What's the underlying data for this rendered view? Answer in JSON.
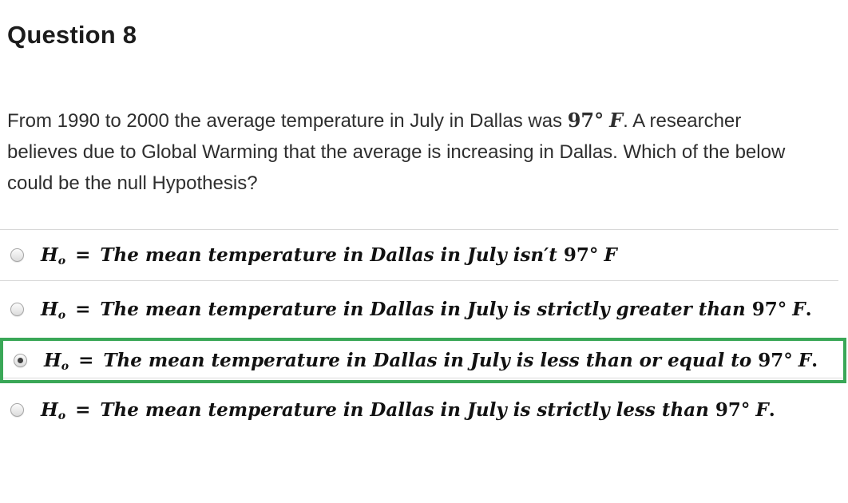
{
  "header": {
    "title": "Question 8"
  },
  "question": {
    "text_before": "From 1990 to 2000 the average temperature in July in Dallas was ",
    "bold_value": "97°",
    "bold_unit": "F",
    "text_after": ". A researcher believes due to Global Warming that the average is increasing in Dallas. Which of the below could be the null Hypothesis?"
  },
  "options": [
    {
      "hypothesis_symbol": "H",
      "hypothesis_sub": "o",
      "equals": "=",
      "text": "The mean temperature in Dallas in July isn′t",
      "value": "97°",
      "unit": "F",
      "period": "",
      "selected": false
    },
    {
      "hypothesis_symbol": "H",
      "hypothesis_sub": "o",
      "equals": "=",
      "text": "The mean temperature in Dallas in July is strictly greater than",
      "value": "97°",
      "unit": "F",
      "period": ".",
      "selected": false
    },
    {
      "hypothesis_symbol": "H",
      "hypothesis_sub": "o",
      "equals": "=",
      "text": "The mean temperature in Dallas in July is less than or equal to",
      "value": "97°",
      "unit": "F",
      "period": ".",
      "selected": true
    },
    {
      "hypothesis_symbol": "H",
      "hypothesis_sub": "o",
      "equals": "=",
      "text": "The mean temperature in Dallas in July is strictly less than",
      "value": "97°",
      "unit": "F",
      "period": ".",
      "selected": false
    }
  ],
  "colors": {
    "highlight_green": "#3aa757",
    "divider": "#d8d8d8",
    "radio_dot": "#3f3f3f",
    "text": "#121212"
  }
}
